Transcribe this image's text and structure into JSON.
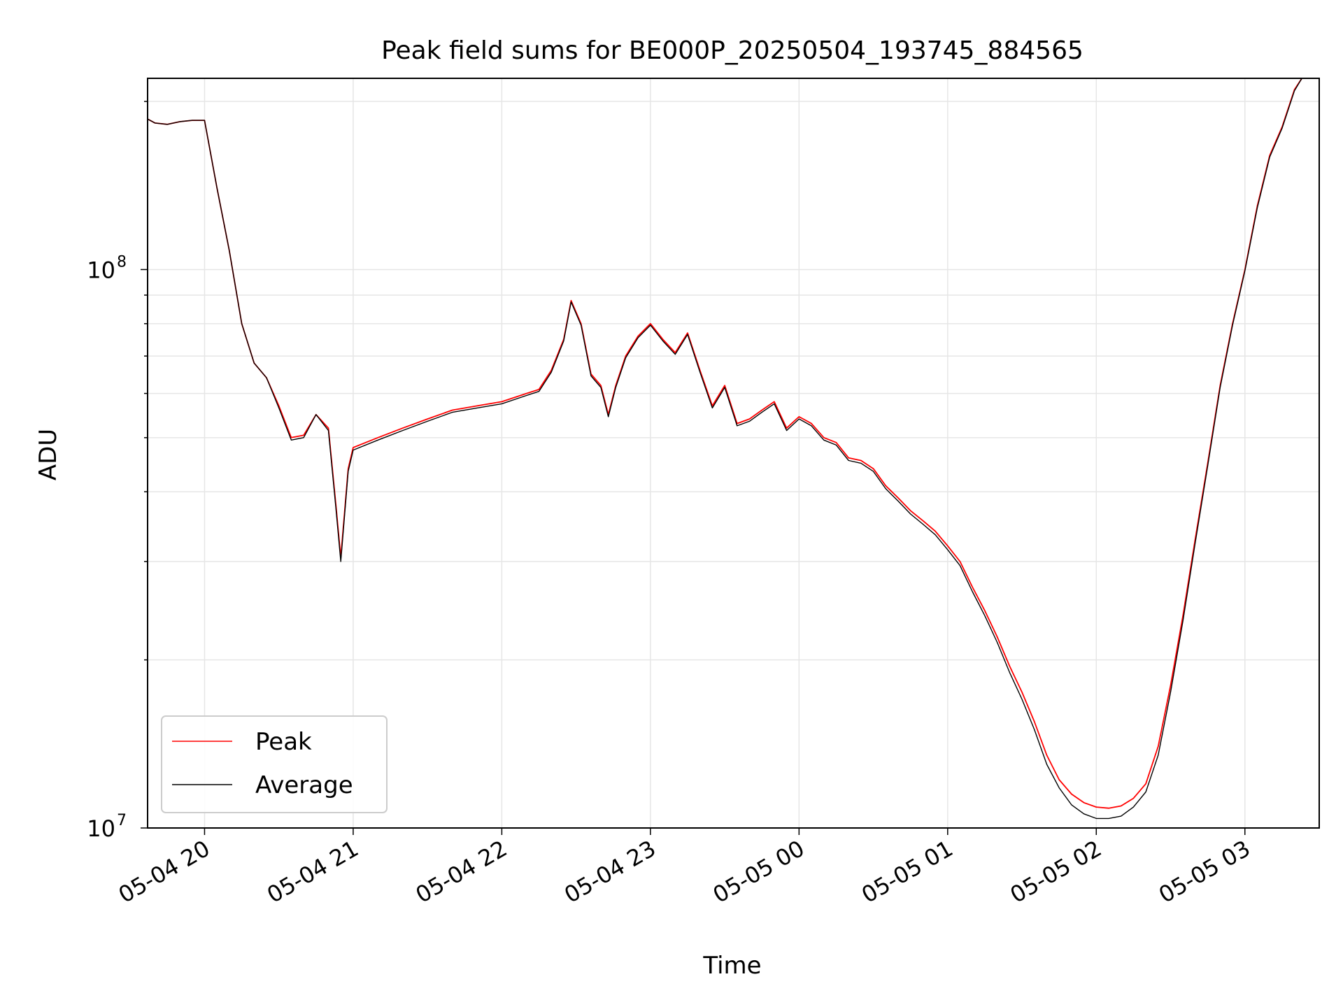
{
  "chart_data": {
    "type": "line",
    "title": "Peak field sums for BE000P_20250504_193745_884565",
    "xlabel": "Time",
    "ylabel": "ADU",
    "y_scale": "log",
    "ylim": [
      10000000,
      220000000
    ],
    "xlim": [
      "2025-05-04 19:37",
      "2025-05-05 03:30"
    ],
    "y_tick_labels": [
      {
        "base": "10",
        "exp": "7",
        "value": 10000000
      },
      {
        "base": "10",
        "exp": "8",
        "value": 100000000
      }
    ],
    "x_ticks": [
      {
        "label": "05-04 20",
        "time": "2025-05-04 20:00"
      },
      {
        "label": "05-04 21",
        "time": "2025-05-04 21:00"
      },
      {
        "label": "05-04 22",
        "time": "2025-05-04 22:00"
      },
      {
        "label": "05-04 23",
        "time": "2025-05-04 23:00"
      },
      {
        "label": "05-05 00",
        "time": "2025-05-05 00:00"
      },
      {
        "label": "05-05 01",
        "time": "2025-05-05 01:00"
      },
      {
        "label": "05-05 02",
        "time": "2025-05-05 02:00"
      },
      {
        "label": "05-05 03",
        "time": "2025-05-05 03:00"
      }
    ],
    "grid": true,
    "legend_position": "lower-left",
    "series": [
      {
        "name": "Peak",
        "color": "#ff0000",
        "points": [
          [
            "2025-05-04 19:37",
            186000000
          ],
          [
            "2025-05-04 19:40",
            183000000
          ],
          [
            "2025-05-04 19:45",
            182000000
          ],
          [
            "2025-05-04 19:50",
            184000000
          ],
          [
            "2025-05-04 19:55",
            185000000
          ],
          [
            "2025-05-04 20:00",
            185000000
          ],
          [
            "2025-05-04 20:05",
            140000000
          ],
          [
            "2025-05-04 20:10",
            108000000
          ],
          [
            "2025-05-04 20:15",
            80000000
          ],
          [
            "2025-05-04 20:20",
            68000000
          ],
          [
            "2025-05-04 20:25",
            64000000
          ],
          [
            "2025-05-04 20:30",
            57000000
          ],
          [
            "2025-05-04 20:35",
            50000000
          ],
          [
            "2025-05-04 20:40",
            50500000
          ],
          [
            "2025-05-04 20:45",
            55000000
          ],
          [
            "2025-05-04 20:50",
            52000000
          ],
          [
            "2025-05-04 20:53",
            38000000
          ],
          [
            "2025-05-04 20:55",
            30500000
          ],
          [
            "2025-05-04 20:58",
            44000000
          ],
          [
            "2025-05-04 21:00",
            48000000
          ],
          [
            "2025-05-04 21:10",
            50000000
          ],
          [
            "2025-05-04 21:20",
            52000000
          ],
          [
            "2025-05-04 21:30",
            54000000
          ],
          [
            "2025-05-04 21:40",
            56000000
          ],
          [
            "2025-05-04 21:50",
            57000000
          ],
          [
            "2025-05-04 22:00",
            58000000
          ],
          [
            "2025-05-04 22:10",
            60000000
          ],
          [
            "2025-05-04 22:15",
            61000000
          ],
          [
            "2025-05-04 22:20",
            66000000
          ],
          [
            "2025-05-04 22:25",
            75000000
          ],
          [
            "2025-05-04 22:28",
            88000000
          ],
          [
            "2025-05-04 22:32",
            80000000
          ],
          [
            "2025-05-04 22:36",
            65000000
          ],
          [
            "2025-05-04 22:40",
            62000000
          ],
          [
            "2025-05-04 22:43",
            55000000
          ],
          [
            "2025-05-04 22:46",
            62000000
          ],
          [
            "2025-05-04 22:50",
            70000000
          ],
          [
            "2025-05-04 22:55",
            76000000
          ],
          [
            "2025-05-04 23:00",
            80000000
          ],
          [
            "2025-05-04 23:05",
            75000000
          ],
          [
            "2025-05-04 23:10",
            71000000
          ],
          [
            "2025-05-04 23:15",
            77000000
          ],
          [
            "2025-05-04 23:20",
            66000000
          ],
          [
            "2025-05-04 23:25",
            57000000
          ],
          [
            "2025-05-04 23:30",
            62000000
          ],
          [
            "2025-05-04 23:35",
            53000000
          ],
          [
            "2025-05-04 23:40",
            54000000
          ],
          [
            "2025-05-04 23:45",
            56000000
          ],
          [
            "2025-05-04 23:50",
            58000000
          ],
          [
            "2025-05-04 23:55",
            52000000
          ],
          [
            "2025-05-05 00:00",
            54500000
          ],
          [
            "2025-05-05 00:05",
            53000000
          ],
          [
            "2025-05-05 00:10",
            50000000
          ],
          [
            "2025-05-05 00:15",
            49000000
          ],
          [
            "2025-05-05 00:20",
            46000000
          ],
          [
            "2025-05-05 00:25",
            45500000
          ],
          [
            "2025-05-05 00:30",
            44000000
          ],
          [
            "2025-05-05 00:35",
            41000000
          ],
          [
            "2025-05-05 00:40",
            39000000
          ],
          [
            "2025-05-05 00:45",
            37000000
          ],
          [
            "2025-05-05 00:50",
            35500000
          ],
          [
            "2025-05-05 00:55",
            34000000
          ],
          [
            "2025-05-05 01:00",
            32000000
          ],
          [
            "2025-05-05 01:05",
            30000000
          ],
          [
            "2025-05-05 01:10",
            27000000
          ],
          [
            "2025-05-05 01:15",
            24500000
          ],
          [
            "2025-05-05 01:20",
            22000000
          ],
          [
            "2025-05-05 01:25",
            19500000
          ],
          [
            "2025-05-05 01:30",
            17500000
          ],
          [
            "2025-05-05 01:35",
            15500000
          ],
          [
            "2025-05-05 01:40",
            13500000
          ],
          [
            "2025-05-05 01:45",
            12200000
          ],
          [
            "2025-05-05 01:50",
            11500000
          ],
          [
            "2025-05-05 01:55",
            11100000
          ],
          [
            "2025-05-05 02:00",
            10900000
          ],
          [
            "2025-05-05 02:05",
            10850000
          ],
          [
            "2025-05-05 02:10",
            10950000
          ],
          [
            "2025-05-05 02:15",
            11300000
          ],
          [
            "2025-05-05 02:20",
            12000000
          ],
          [
            "2025-05-05 02:25",
            14000000
          ],
          [
            "2025-05-05 02:30",
            18000000
          ],
          [
            "2025-05-05 02:35",
            24000000
          ],
          [
            "2025-05-05 02:40",
            33000000
          ],
          [
            "2025-05-05 02:45",
            45000000
          ],
          [
            "2025-05-05 02:50",
            62000000
          ],
          [
            "2025-05-05 02:55",
            80000000
          ],
          [
            "2025-05-05 03:00",
            100000000
          ],
          [
            "2025-05-05 03:05",
            130000000
          ],
          [
            "2025-05-05 03:10",
            160000000
          ],
          [
            "2025-05-05 03:15",
            180000000
          ],
          [
            "2025-05-05 03:20",
            210000000
          ],
          [
            "2025-05-05 03:23",
            220000000
          ]
        ]
      },
      {
        "name": "Average",
        "color": "#000000",
        "points": [
          [
            "2025-05-04 19:37",
            186000000
          ],
          [
            "2025-05-04 19:40",
            183000000
          ],
          [
            "2025-05-04 19:45",
            182000000
          ],
          [
            "2025-05-04 19:50",
            184000000
          ],
          [
            "2025-05-04 19:55",
            185000000
          ],
          [
            "2025-05-04 20:00",
            185000000
          ],
          [
            "2025-05-04 20:05",
            140000000
          ],
          [
            "2025-05-04 20:10",
            108000000
          ],
          [
            "2025-05-04 20:15",
            80000000
          ],
          [
            "2025-05-04 20:20",
            68000000
          ],
          [
            "2025-05-04 20:25",
            64000000
          ],
          [
            "2025-05-04 20:30",
            56500000
          ],
          [
            "2025-05-04 20:35",
            49500000
          ],
          [
            "2025-05-04 20:40",
            50000000
          ],
          [
            "2025-05-04 20:45",
            55000000
          ],
          [
            "2025-05-04 20:50",
            51500000
          ],
          [
            "2025-05-04 20:53",
            37500000
          ],
          [
            "2025-05-04 20:55",
            30000000
          ],
          [
            "2025-05-04 20:58",
            43500000
          ],
          [
            "2025-05-04 21:00",
            47500000
          ],
          [
            "2025-05-04 21:10",
            49500000
          ],
          [
            "2025-05-04 21:20",
            51500000
          ],
          [
            "2025-05-04 21:30",
            53500000
          ],
          [
            "2025-05-04 21:40",
            55500000
          ],
          [
            "2025-05-04 21:50",
            56500000
          ],
          [
            "2025-05-04 22:00",
            57500000
          ],
          [
            "2025-05-04 22:10",
            59500000
          ],
          [
            "2025-05-04 22:15",
            60500000
          ],
          [
            "2025-05-04 22:20",
            65500000
          ],
          [
            "2025-05-04 22:25",
            74500000
          ],
          [
            "2025-05-04 22:28",
            87500000
          ],
          [
            "2025-05-04 22:32",
            79500000
          ],
          [
            "2025-05-04 22:36",
            64500000
          ],
          [
            "2025-05-04 22:40",
            61500000
          ],
          [
            "2025-05-04 22:43",
            54500000
          ],
          [
            "2025-05-04 22:46",
            61500000
          ],
          [
            "2025-05-04 22:50",
            69500000
          ],
          [
            "2025-05-04 22:55",
            75500000
          ],
          [
            "2025-05-04 23:00",
            79500000
          ],
          [
            "2025-05-04 23:05",
            74500000
          ],
          [
            "2025-05-04 23:10",
            70500000
          ],
          [
            "2025-05-04 23:15",
            76500000
          ],
          [
            "2025-05-04 23:20",
            65500000
          ],
          [
            "2025-05-04 23:25",
            56500000
          ],
          [
            "2025-05-04 23:30",
            61500000
          ],
          [
            "2025-05-04 23:35",
            52500000
          ],
          [
            "2025-05-04 23:40",
            53500000
          ],
          [
            "2025-05-04 23:45",
            55500000
          ],
          [
            "2025-05-04 23:50",
            57500000
          ],
          [
            "2025-05-04 23:55",
            51500000
          ],
          [
            "2025-05-05 00:00",
            54000000
          ],
          [
            "2025-05-05 00:05",
            52500000
          ],
          [
            "2025-05-05 00:10",
            49500000
          ],
          [
            "2025-05-05 00:15",
            48500000
          ],
          [
            "2025-05-05 00:20",
            45500000
          ],
          [
            "2025-05-05 00:25",
            45000000
          ],
          [
            "2025-05-05 00:30",
            43500000
          ],
          [
            "2025-05-05 00:35",
            40500000
          ],
          [
            "2025-05-05 00:40",
            38500000
          ],
          [
            "2025-05-05 00:45",
            36500000
          ],
          [
            "2025-05-05 00:50",
            35000000
          ],
          [
            "2025-05-05 00:55",
            33500000
          ],
          [
            "2025-05-05 01:00",
            31500000
          ],
          [
            "2025-05-05 01:05",
            29500000
          ],
          [
            "2025-05-05 01:10",
            26500000
          ],
          [
            "2025-05-05 01:15",
            24000000
          ],
          [
            "2025-05-05 01:20",
            21500000
          ],
          [
            "2025-05-05 01:25",
            19000000
          ],
          [
            "2025-05-05 01:30",
            17000000
          ],
          [
            "2025-05-05 01:35",
            15000000
          ],
          [
            "2025-05-05 01:40",
            13000000
          ],
          [
            "2025-05-05 01:45",
            11800000
          ],
          [
            "2025-05-05 01:50",
            11000000
          ],
          [
            "2025-05-05 01:55",
            10600000
          ],
          [
            "2025-05-05 02:00",
            10400000
          ],
          [
            "2025-05-05 02:05",
            10400000
          ],
          [
            "2025-05-05 02:10",
            10500000
          ],
          [
            "2025-05-05 02:15",
            10900000
          ],
          [
            "2025-05-05 02:20",
            11600000
          ],
          [
            "2025-05-05 02:25",
            13500000
          ],
          [
            "2025-05-05 02:30",
            17500000
          ],
          [
            "2025-05-05 02:35",
            23500000
          ],
          [
            "2025-05-05 02:40",
            32500000
          ],
          [
            "2025-05-05 02:45",
            44500000
          ],
          [
            "2025-05-05 02:50",
            61500000
          ],
          [
            "2025-05-05 02:55",
            79500000
          ],
          [
            "2025-05-05 03:00",
            99500000
          ],
          [
            "2025-05-05 03:05",
            129000000
          ],
          [
            "2025-05-05 03:10",
            159000000
          ],
          [
            "2025-05-05 03:15",
            179000000
          ],
          [
            "2025-05-05 03:20",
            209000000
          ],
          [
            "2025-05-05 03:23",
            220000000
          ]
        ]
      }
    ]
  }
}
